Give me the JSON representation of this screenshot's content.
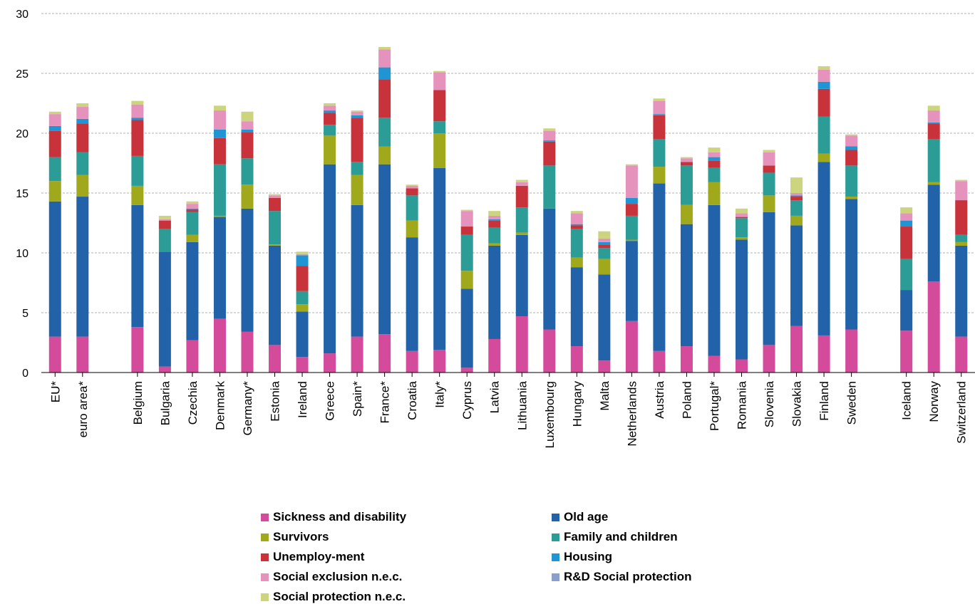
{
  "chart_data": {
    "type": "bar",
    "stacked": true,
    "ylim": [
      0,
      30
    ],
    "yticks": [
      0,
      5,
      10,
      15,
      20,
      25,
      30
    ],
    "grid": true,
    "legend_position": "bottom",
    "categories": [
      "EU*",
      "euro area*",
      "",
      "Belgium",
      "Bulgaria",
      "Czechia",
      "Denmark",
      "Germany*",
      "Estonia",
      "Ireland",
      "Greece",
      "Spain*",
      "France*",
      "Croatia",
      "Italy*",
      "Cyprus",
      "Latvia",
      "Lithuania",
      "Luxembourg",
      "Hungary",
      "Malta",
      "Netherlands",
      "Austria",
      "Poland",
      "Portugal*",
      "Romania",
      "Slovenia",
      "Slovakia",
      "Finland",
      "Sweden",
      "",
      "Iceland",
      "Norway",
      "Switzerland"
    ],
    "series": [
      {
        "name": "Sickness and disability",
        "color": "#d44b9c",
        "values": [
          3.0,
          3.0,
          null,
          3.8,
          0.5,
          2.7,
          4.5,
          3.4,
          2.3,
          1.3,
          1.6,
          3.0,
          3.2,
          1.8,
          1.9,
          0.4,
          2.8,
          4.7,
          3.6,
          2.2,
          1.0,
          4.3,
          1.8,
          2.2,
          1.4,
          1.1,
          2.3,
          3.9,
          3.1,
          3.6,
          null,
          3.5,
          7.6,
          3.0
        ]
      },
      {
        "name": "Old age",
        "color": "#2162a8",
        "values": [
          11.3,
          11.7,
          null,
          10.2,
          9.6,
          8.2,
          8.5,
          10.3,
          8.3,
          3.8,
          15.8,
          11.0,
          14.2,
          9.5,
          15.2,
          6.6,
          7.8,
          6.8,
          10.1,
          6.6,
          7.2,
          6.7,
          14.0,
          10.2,
          12.6,
          10.0,
          11.1,
          8.4,
          14.5,
          10.9,
          null,
          3.4,
          8.1,
          7.6
        ]
      },
      {
        "name": "Survivors",
        "color": "#a0a81c",
        "values": [
          1.7,
          1.8,
          null,
          1.6,
          0.0,
          0.6,
          0.1,
          2.0,
          0.1,
          0.6,
          2.4,
          2.5,
          1.5,
          1.4,
          2.9,
          1.5,
          0.2,
          0.2,
          0.0,
          0.8,
          1.3,
          0.1,
          1.4,
          1.6,
          1.9,
          0.2,
          1.4,
          0.8,
          0.7,
          0.2,
          null,
          0.0,
          0.2,
          0.3
        ]
      },
      {
        "name": "Family and children",
        "color": "#2c9c97",
        "values": [
          2.0,
          1.9,
          null,
          2.5,
          1.9,
          1.9,
          4.3,
          2.2,
          2.8,
          1.1,
          0.9,
          1.1,
          2.4,
          2.1,
          1.0,
          3.0,
          1.3,
          2.1,
          3.6,
          2.4,
          0.9,
          2.0,
          2.3,
          3.3,
          1.2,
          1.6,
          1.9,
          1.3,
          3.1,
          2.6,
          null,
          2.6,
          3.6,
          0.6
        ]
      },
      {
        "name": "Unemploy-ment",
        "color": "#c8323a",
        "values": [
          2.2,
          2.4,
          null,
          3.0,
          0.7,
          0.2,
          2.2,
          2.2,
          1.1,
          2.1,
          1.0,
          3.7,
          3.2,
          0.6,
          2.6,
          0.7,
          0.6,
          1.8,
          2.0,
          0.3,
          0.3,
          1.0,
          2.0,
          0.3,
          0.6,
          0.1,
          0.6,
          0.3,
          2.3,
          1.3,
          null,
          2.7,
          1.3,
          2.9
        ]
      },
      {
        "name": "Housing",
        "color": "#1f96d3",
        "values": [
          0.4,
          0.4,
          null,
          0.2,
          0.0,
          0.1,
          0.7,
          0.2,
          0.0,
          0.9,
          0.2,
          0.2,
          1.0,
          0.0,
          0.0,
          0.0,
          0.1,
          0.0,
          0.1,
          0.1,
          0.2,
          0.5,
          0.1,
          0.0,
          0.3,
          0.0,
          0.0,
          0.1,
          0.6,
          0.3,
          null,
          0.5,
          0.1,
          0.0
        ]
      },
      {
        "name": "Social exclusion n.e.c.",
        "color": "#e592bd",
        "values": [
          1.0,
          1.0,
          null,
          1.1,
          0.1,
          0.4,
          1.6,
          0.7,
          0.2,
          0.1,
          0.4,
          0.3,
          1.5,
          0.2,
          1.5,
          1.3,
          0.3,
          0.3,
          0.8,
          0.9,
          0.3,
          2.7,
          1.1,
          0.3,
          0.4,
          0.3,
          1.1,
          0.2,
          1.0,
          0.9,
          null,
          0.6,
          1.0,
          1.6
        ]
      },
      {
        "name": "R&D Social protection",
        "color": "#8c9fcc",
        "values": [
          0.0,
          0.0,
          null,
          0.0,
          0.0,
          0.0,
          0.0,
          0.0,
          0.0,
          0.0,
          0.0,
          0.0,
          0.0,
          0.0,
          0.0,
          0.0,
          0.0,
          0.0,
          0.0,
          0.0,
          0.0,
          0.0,
          0.0,
          0.0,
          0.0,
          0.0,
          0.0,
          0.0,
          0.0,
          0.0,
          null,
          0.0,
          0.0,
          0.0
        ]
      },
      {
        "name": "Social protection n.e.c.",
        "color": "#ccd47e",
        "values": [
          0.2,
          0.3,
          null,
          0.3,
          0.3,
          0.2,
          0.4,
          0.8,
          0.1,
          0.2,
          0.2,
          0.1,
          0.2,
          0.1,
          0.1,
          0.1,
          0.4,
          0.2,
          0.2,
          0.2,
          0.6,
          0.1,
          0.2,
          0.1,
          0.4,
          0.4,
          0.2,
          1.3,
          0.3,
          0.1,
          null,
          0.5,
          0.4,
          0.1
        ]
      }
    ]
  }
}
